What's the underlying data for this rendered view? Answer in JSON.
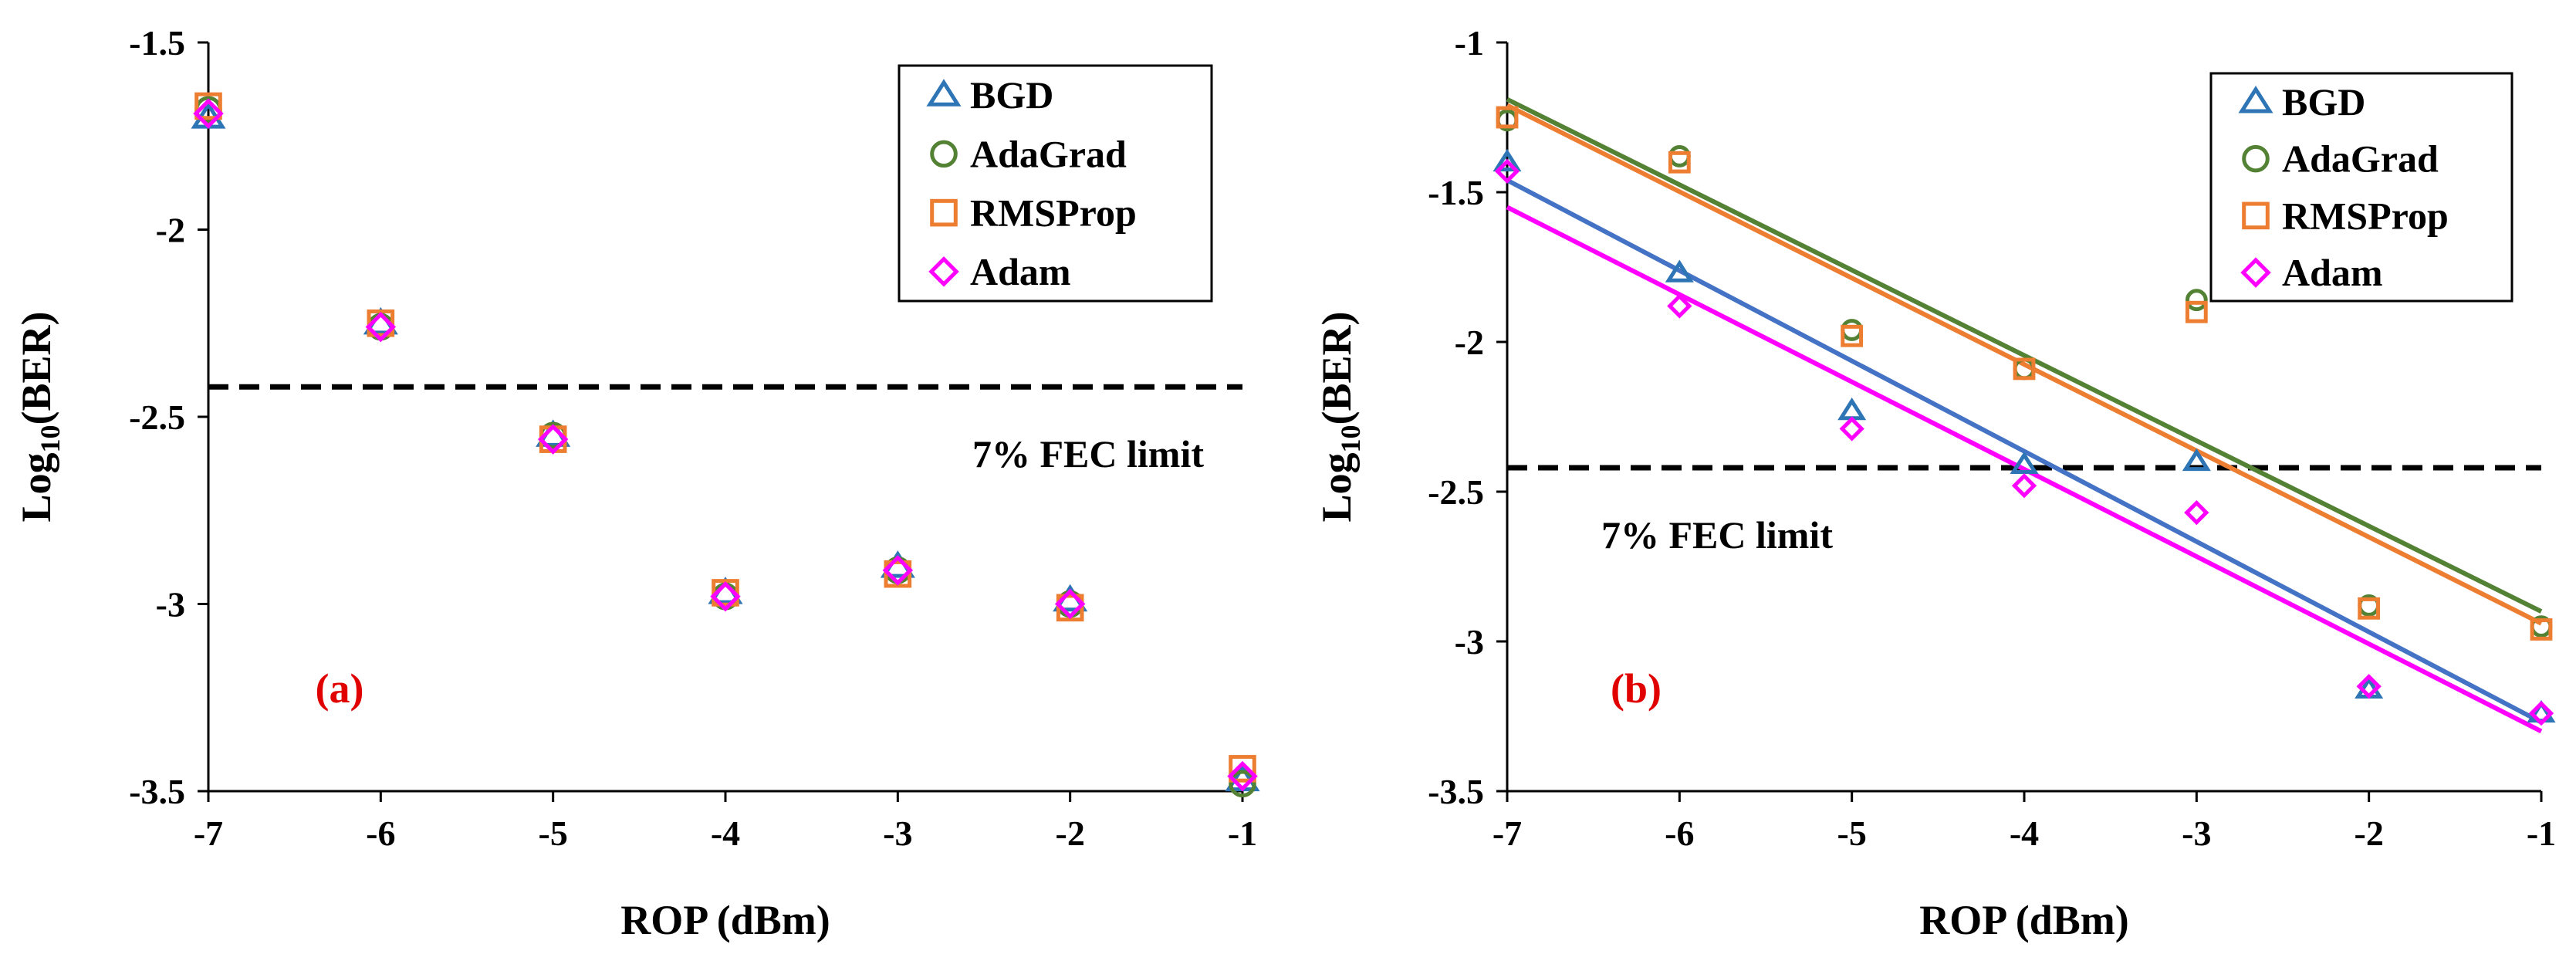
{
  "colors": {
    "BGD": "#2e75b6",
    "AdaGrad": "#548235",
    "RMSProp": "#ed7d31",
    "Adam": "#ff00ff",
    "BGD_fit": "#4472c4",
    "Adam_fit": "#ff00ff",
    "fec_line": "#000000",
    "panel_label": "#e00000"
  },
  "chart_data": [
    {
      "type": "scatter",
      "panel_label": "(a)",
      "xlabel": "ROP (dBm)",
      "ylabel_main": "Log",
      "ylabel_sub": "10",
      "ylabel_tail": "(BER)",
      "xlim": [
        -7,
        -1
      ],
      "ylim": [
        -3.5,
        -1.5
      ],
      "xticks": [
        -7,
        -6,
        -5,
        -4,
        -3,
        -2,
        -1
      ],
      "xtick_labels": [
        "-7",
        "-6",
        "-5",
        "-4",
        "-3",
        "-2",
        "-1"
      ],
      "yticks": [
        -1.5,
        -2,
        -2.5,
        -3,
        -3.5
      ],
      "ytick_labels": [
        "-1.5",
        "-2",
        "-2.5",
        "-3",
        "-3.5"
      ],
      "x": [
        -7,
        -6,
        -5,
        -4,
        -3,
        -2,
        -1
      ],
      "series": [
        {
          "name": "BGD",
          "marker": "triangle",
          "values": [
            -1.7,
            -2.25,
            -2.55,
            -2.97,
            -2.9,
            -2.99,
            -3.47
          ]
        },
        {
          "name": "AdaGrad",
          "marker": "circle",
          "values": [
            -1.68,
            -2.26,
            -2.55,
            -2.98,
            -2.91,
            -3.0,
            -3.48
          ]
        },
        {
          "name": "RMSProp",
          "marker": "square",
          "values": [
            -1.67,
            -2.25,
            -2.56,
            -2.97,
            -2.92,
            -3.01,
            -3.44
          ]
        },
        {
          "name": "Adam",
          "marker": "diamond",
          "values": [
            -1.69,
            -2.26,
            -2.56,
            -2.98,
            -2.91,
            -3.0,
            -3.46
          ]
        }
      ],
      "fec_limit": {
        "y": -2.42,
        "label": "7% FEC limit"
      },
      "legend": [
        "BGD",
        "AdaGrad",
        "RMSProp",
        "Adam"
      ]
    },
    {
      "type": "scatter",
      "panel_label": "(b)",
      "xlabel": "ROP (dBm)",
      "ylabel_main": "Log",
      "ylabel_sub": "10",
      "ylabel_tail": "(BER)",
      "xlim": [
        -7,
        -1
      ],
      "ylim": [
        -3.5,
        -1
      ],
      "xticks": [
        -7,
        -6,
        -5,
        -4,
        -3,
        -2,
        -1
      ],
      "xtick_labels": [
        "-7",
        "-6",
        "-5",
        "-4",
        "-3",
        "-2",
        "-1"
      ],
      "yticks": [
        -1,
        -1.5,
        -2,
        -2.5,
        -3,
        -3.5
      ],
      "ytick_labels": [
        "-1",
        "-1.5",
        "-2",
        "-2.5",
        "-3",
        "-3.5"
      ],
      "x": [
        -7,
        -6,
        -5,
        -4,
        -3,
        -2,
        -1
      ],
      "series": [
        {
          "name": "BGD",
          "marker": "triangle",
          "values": [
            -1.4,
            -1.77,
            -2.23,
            -2.41,
            -2.4,
            -3.16,
            -3.24
          ]
        },
        {
          "name": "AdaGrad",
          "marker": "circle",
          "values": [
            -1.26,
            -1.38,
            -1.96,
            -2.09,
            -1.86,
            -2.88,
            -2.95
          ]
        },
        {
          "name": "RMSProp",
          "marker": "square",
          "values": [
            -1.25,
            -1.4,
            -1.98,
            -2.09,
            -1.9,
            -2.89,
            -2.96
          ]
        },
        {
          "name": "Adam",
          "marker": "diamond",
          "values": [
            -1.43,
            -1.88,
            -2.29,
            -2.48,
            -2.57,
            -3.15,
            -3.24
          ]
        }
      ],
      "trendlines": [
        {
          "name": "AdaGrad",
          "x": [
            -7,
            -1
          ],
          "y": [
            -1.19,
            -2.9
          ]
        },
        {
          "name": "RMSProp",
          "x": [
            -7,
            -1
          ],
          "y": [
            -1.21,
            -2.94
          ]
        },
        {
          "name": "BGD",
          "x": [
            -7,
            -1
          ],
          "y": [
            -1.46,
            -3.27
          ]
        },
        {
          "name": "Adam",
          "x": [
            -7,
            -1
          ],
          "y": [
            -1.55,
            -3.3
          ]
        }
      ],
      "fec_limit": {
        "y": -2.42,
        "label": "7% FEC limit"
      },
      "legend": [
        "BGD",
        "AdaGrad",
        "RMSProp",
        "Adam"
      ]
    }
  ]
}
